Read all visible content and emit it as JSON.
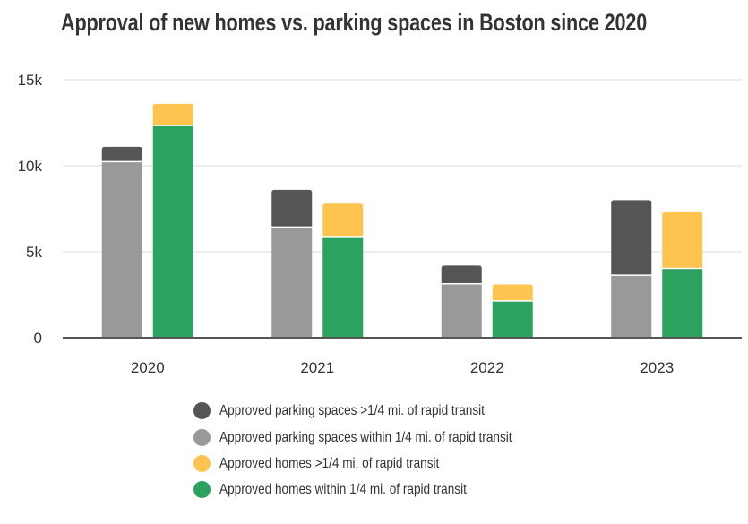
{
  "chart_data": {
    "type": "bar",
    "stacked": true,
    "title": "Approval of new homes vs. parking spaces in Boston since 2020",
    "categories": [
      "2020",
      "2021",
      "2022",
      "2023"
    ],
    "ylim": [
      0,
      15000
    ],
    "yticks": [
      0,
      5000,
      10000,
      15000
    ],
    "ytick_labels": [
      "0",
      "5k",
      "10k",
      "15k"
    ],
    "grid": true,
    "legend_position": "bottom",
    "stacks": [
      {
        "stack": "parking",
        "series": [
          {
            "name": "Approved parking spaces within 1/4 mi. of rapid transit",
            "color": "#999999",
            "values": [
              10200,
              6400,
              3100,
              3600
            ]
          },
          {
            "name": "Approved parking spaces >1/4 mi. of rapid transit",
            "color": "#555555",
            "values": [
              900,
              2200,
              1100,
              4400
            ]
          }
        ]
      },
      {
        "stack": "homes",
        "series": [
          {
            "name": "Approved homes within 1/4 mi. of rapid transit",
            "color": "#2ca25f",
            "values": [
              12300,
              5800,
              2100,
              4000
            ]
          },
          {
            "name": "Approved homes >1/4 mi. of rapid transit",
            "color": "#ffc34f",
            "values": [
              1300,
              2000,
              1000,
              3300
            ]
          }
        ]
      }
    ],
    "legend": [
      {
        "label": "Approved parking spaces >1/4 mi. of rapid transit",
        "color": "#555555"
      },
      {
        "label": "Approved parking spaces within 1/4 mi. of rapid transit",
        "color": "#999999"
      },
      {
        "label": "Approved homes >1/4 mi. of rapid transit",
        "color": "#ffc34f"
      },
      {
        "label": "Approved homes within 1/4 mi. of rapid transit",
        "color": "#2ca25f"
      }
    ]
  }
}
